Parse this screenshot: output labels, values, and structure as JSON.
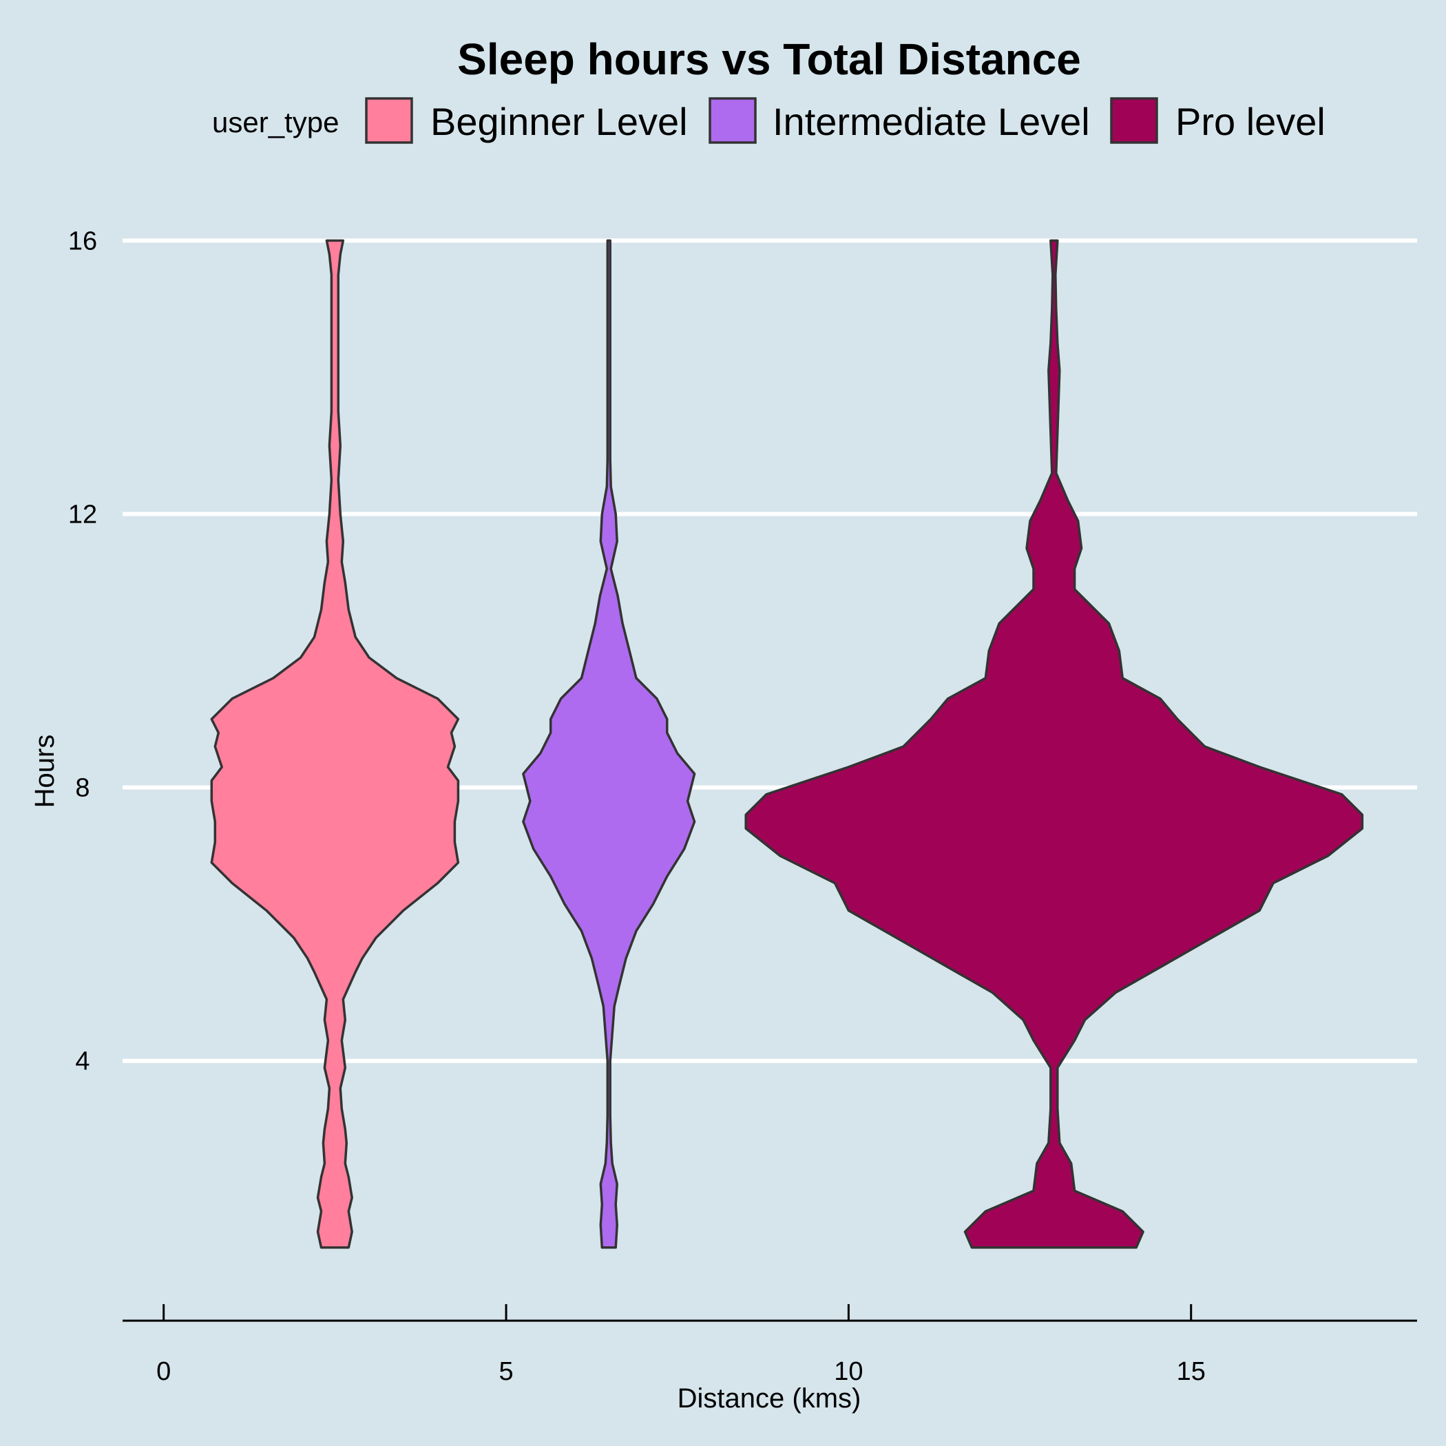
{
  "chart_data": {
    "type": "violin",
    "title": "Sleep hours vs Total Distance",
    "xlabel": "Distance (kms)",
    "ylabel": "Hours",
    "x_ticks": [
      0,
      5,
      10,
      15
    ],
    "y_ticks": [
      4,
      8,
      12,
      16
    ],
    "xlim": [
      -0.6,
      18.3
    ],
    "ylim": [
      0.2,
      16.8
    ],
    "grid": "horizontal-major",
    "legend": {
      "title": "user_type",
      "position": "top",
      "entries": [
        "Beginner Level",
        "Intermediate Level",
        "Pro level"
      ]
    },
    "series": [
      {
        "name": "Beginner Level",
        "color": "#ff7f9c",
        "center_x": 2.5,
        "profile": [
          [
            1.27,
            0.2
          ],
          [
            1.5,
            0.25
          ],
          [
            1.8,
            0.2
          ],
          [
            2.0,
            0.25
          ],
          [
            2.3,
            0.2
          ],
          [
            2.5,
            0.15
          ],
          [
            2.8,
            0.17
          ],
          [
            3.0,
            0.15
          ],
          [
            3.3,
            0.1
          ],
          [
            3.6,
            0.08
          ],
          [
            3.9,
            0.15
          ],
          [
            4.3,
            0.1
          ],
          [
            4.6,
            0.15
          ],
          [
            4.9,
            0.12
          ],
          [
            5.3,
            0.3
          ],
          [
            5.5,
            0.4
          ],
          [
            5.8,
            0.6
          ],
          [
            6.2,
            1.0
          ],
          [
            6.6,
            1.5
          ],
          [
            6.9,
            1.8
          ],
          [
            7.2,
            1.75
          ],
          [
            7.5,
            1.75
          ],
          [
            7.8,
            1.8
          ],
          [
            8.1,
            1.8
          ],
          [
            8.3,
            1.65
          ],
          [
            8.6,
            1.75
          ],
          [
            8.8,
            1.7
          ],
          [
            9.0,
            1.8
          ],
          [
            9.3,
            1.5
          ],
          [
            9.6,
            0.9
          ],
          [
            9.9,
            0.5
          ],
          [
            10.2,
            0.3
          ],
          [
            10.6,
            0.2
          ],
          [
            11.0,
            0.15
          ],
          [
            11.3,
            0.1
          ],
          [
            11.6,
            0.12
          ],
          [
            12.0,
            0.08
          ],
          [
            12.5,
            0.05
          ],
          [
            13.0,
            0.08
          ],
          [
            13.5,
            0.05
          ],
          [
            14.0,
            0.05
          ],
          [
            14.5,
            0.05
          ],
          [
            15.0,
            0.05
          ],
          [
            15.5,
            0.05
          ],
          [
            15.8,
            0.08
          ],
          [
            16.0,
            0.12
          ]
        ]
      },
      {
        "name": "Intermediate Level",
        "color": "#ae6bef",
        "center_x": 6.5,
        "profile": [
          [
            1.27,
            0.1
          ],
          [
            1.6,
            0.12
          ],
          [
            1.9,
            0.1
          ],
          [
            2.2,
            0.12
          ],
          [
            2.5,
            0.05
          ],
          [
            2.8,
            0.03
          ],
          [
            3.2,
            0.02
          ],
          [
            3.6,
            0.02
          ],
          [
            4.0,
            0.02
          ],
          [
            4.4,
            0.05
          ],
          [
            4.8,
            0.08
          ],
          [
            5.1,
            0.15
          ],
          [
            5.5,
            0.25
          ],
          [
            5.9,
            0.4
          ],
          [
            6.3,
            0.65
          ],
          [
            6.7,
            0.85
          ],
          [
            7.1,
            1.1
          ],
          [
            7.5,
            1.25
          ],
          [
            7.8,
            1.15
          ],
          [
            8.2,
            1.25
          ],
          [
            8.5,
            1.0
          ],
          [
            8.8,
            0.85
          ],
          [
            9.0,
            0.85
          ],
          [
            9.3,
            0.7
          ],
          [
            9.6,
            0.4
          ],
          [
            10.0,
            0.3
          ],
          [
            10.4,
            0.2
          ],
          [
            10.8,
            0.13
          ],
          [
            11.2,
            0.03
          ],
          [
            11.6,
            0.12
          ],
          [
            12.0,
            0.1
          ],
          [
            12.4,
            0.03
          ],
          [
            12.8,
            0.02
          ],
          [
            14.0,
            0.02
          ],
          [
            15.0,
            0.02
          ],
          [
            16.0,
            0.02
          ]
        ]
      },
      {
        "name": "Pro level",
        "color": "#a00356",
        "center_x": 13.0,
        "profile": [
          [
            1.27,
            1.2
          ],
          [
            1.5,
            1.3
          ],
          [
            1.8,
            1.0
          ],
          [
            2.1,
            0.3
          ],
          [
            2.5,
            0.25
          ],
          [
            2.8,
            0.08
          ],
          [
            3.3,
            0.05
          ],
          [
            3.9,
            0.05
          ],
          [
            4.3,
            0.3
          ],
          [
            4.6,
            0.45
          ],
          [
            5.0,
            0.9
          ],
          [
            5.4,
            1.6
          ],
          [
            5.8,
            2.3
          ],
          [
            6.2,
            3.0
          ],
          [
            6.6,
            3.2
          ],
          [
            7.0,
            4.0
          ],
          [
            7.4,
            4.5
          ],
          [
            7.6,
            4.5
          ],
          [
            7.9,
            4.2
          ],
          [
            8.3,
            3.0
          ],
          [
            8.6,
            2.2
          ],
          [
            8.8,
            2.0
          ],
          [
            9.0,
            1.8
          ],
          [
            9.3,
            1.55
          ],
          [
            9.6,
            1.0
          ],
          [
            10.0,
            0.95
          ],
          [
            10.4,
            0.8
          ],
          [
            10.9,
            0.3
          ],
          [
            11.2,
            0.3
          ],
          [
            11.5,
            0.4
          ],
          [
            11.9,
            0.35
          ],
          [
            12.2,
            0.2
          ],
          [
            12.6,
            0.03
          ],
          [
            13.2,
            0.05
          ],
          [
            14.1,
            0.08
          ],
          [
            14.5,
            0.05
          ],
          [
            15.0,
            0.03
          ],
          [
            15.5,
            0.02
          ],
          [
            16.0,
            0.05
          ]
        ]
      }
    ]
  }
}
